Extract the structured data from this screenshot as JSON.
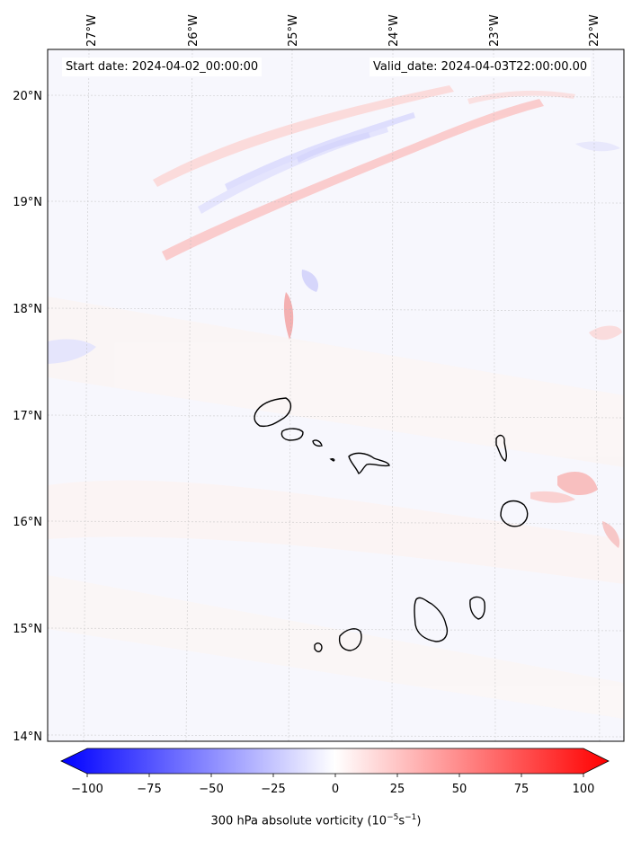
{
  "header": {
    "start_date": "Start date: 2024-04-02_00:00:00",
    "valid_date": "Valid_date: 2024-04-03T22:00:00.00"
  },
  "map": {
    "lon_labels": [
      "27°W",
      "26°W",
      "25°W",
      "24°W",
      "23°W",
      "22°W"
    ],
    "lat_labels": [
      "20°N",
      "19°N",
      "18°N",
      "17°N",
      "16°N",
      "15°N",
      "14°N"
    ],
    "lon_range": [
      -27.35,
      -21.8
    ],
    "lat_range": [
      13.95,
      20.4
    ],
    "gridlines": true,
    "colors": {
      "positive": "#ff0000",
      "negative": "#0000ff",
      "coast": "#000000"
    }
  },
  "colorbar": {
    "ticks": [
      "−100",
      "−75",
      "−50",
      "−25",
      "0",
      "25",
      "50",
      "75",
      "100"
    ],
    "range": [
      -100,
      100
    ],
    "label_prefix": "300 hPa absolute vorticity (10",
    "label_exp1": "−5",
    "label_mid": "s",
    "label_exp2": "−1",
    "label_suffix": ")"
  }
}
